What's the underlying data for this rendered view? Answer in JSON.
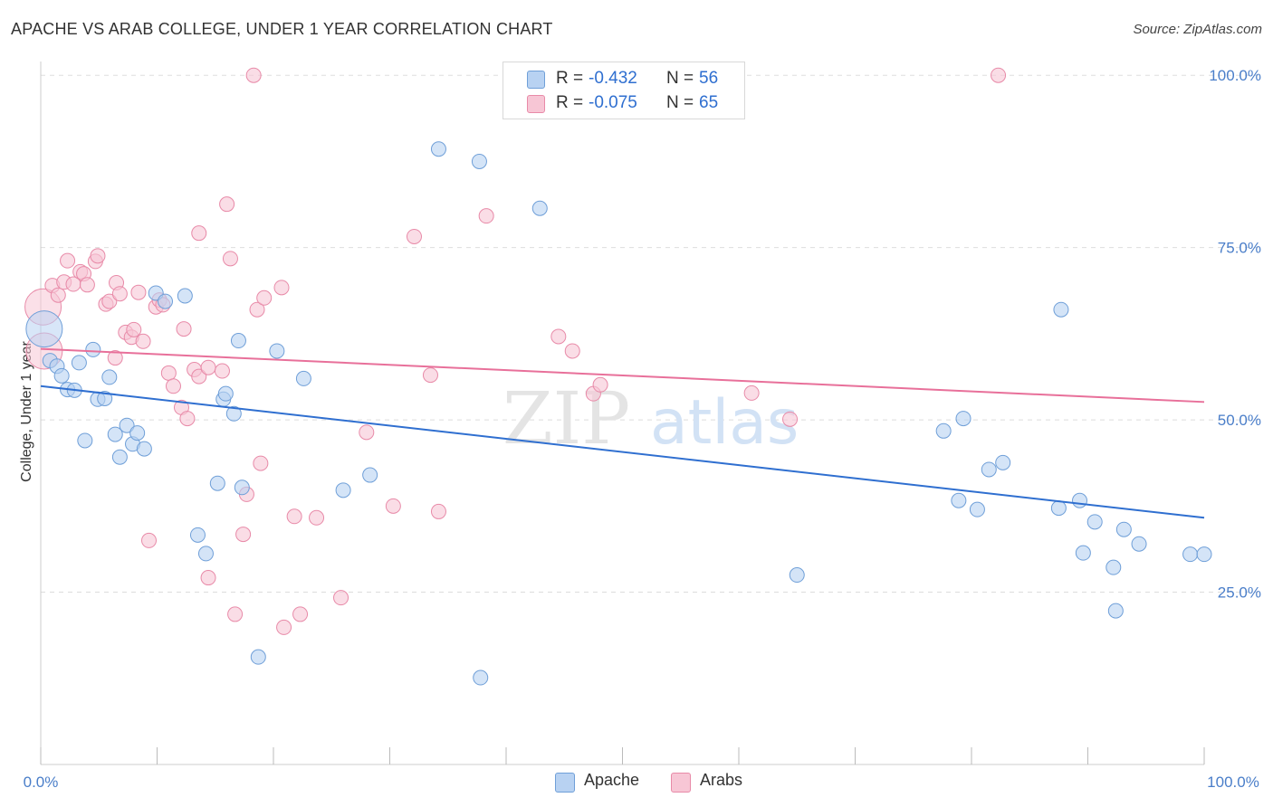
{
  "title": "APACHE VS ARAB COLLEGE, UNDER 1 YEAR CORRELATION CHART",
  "source": "Source: ZipAtlas.com",
  "watermark": {
    "zip": "ZIP",
    "atlas": "atlas"
  },
  "legend": {
    "apache": {
      "r_label": "R =",
      "r_value": "-0.432",
      "n_label": "N =",
      "n_value": "56"
    },
    "arabs": {
      "r_label": "R =",
      "r_value": "-0.075",
      "n_label": "N =",
      "n_value": "65"
    }
  },
  "bottom_legend": {
    "apache": "Apache",
    "arabs": "Arabs"
  },
  "colors": {
    "apache_fill": "#b8d2f2",
    "apache_stroke": "#6f9fd8",
    "apache_line": "#2f6fd0",
    "arabs_fill": "#f7c6d5",
    "arabs_stroke": "#e88aa8",
    "arabs_line": "#e8709a",
    "grid": "#dddddd",
    "tick_text": "#4a7ec9"
  },
  "chart_data": {
    "type": "scatter",
    "title": "APACHE VS ARAB COLLEGE, UNDER 1 YEAR CORRELATION CHART",
    "xlabel": "",
    "ylabel": "College, Under 1 year",
    "xlim": [
      0,
      100
    ],
    "ylim": [
      0,
      102
    ],
    "x_tick_labels": [
      "0.0%",
      "100.0%"
    ],
    "y_ticks": [
      25,
      50,
      75,
      100
    ],
    "y_tick_labels": [
      "25.0%",
      "50.0%",
      "75.0%",
      "100.0%"
    ],
    "series": [
      {
        "name": "Apache",
        "trend": {
          "x": [
            0,
            100
          ],
          "y": [
            54.9,
            35.8
          ]
        },
        "points": [
          {
            "x": 0.3,
            "y": 63.2,
            "big": true
          },
          {
            "x": 0.8,
            "y": 58.6
          },
          {
            "x": 1.4,
            "y": 57.8
          },
          {
            "x": 1.8,
            "y": 56.4
          },
          {
            "x": 2.3,
            "y": 54.4
          },
          {
            "x": 2.9,
            "y": 54.3
          },
          {
            "x": 3.3,
            "y": 58.3
          },
          {
            "x": 3.8,
            "y": 47.0
          },
          {
            "x": 4.5,
            "y": 60.2
          },
          {
            "x": 4.9,
            "y": 53.0
          },
          {
            "x": 5.5,
            "y": 53.1
          },
          {
            "x": 5.9,
            "y": 56.2
          },
          {
            "x": 6.4,
            "y": 47.9
          },
          {
            "x": 6.8,
            "y": 44.6
          },
          {
            "x": 7.4,
            "y": 49.2
          },
          {
            "x": 7.9,
            "y": 46.5
          },
          {
            "x": 8.3,
            "y": 48.1
          },
          {
            "x": 8.9,
            "y": 45.8
          },
          {
            "x": 9.9,
            "y": 68.4
          },
          {
            "x": 10.7,
            "y": 67.2
          },
          {
            "x": 12.4,
            "y": 68.0
          },
          {
            "x": 13.5,
            "y": 33.3
          },
          {
            "x": 14.2,
            "y": 30.6
          },
          {
            "x": 15.2,
            "y": 40.8
          },
          {
            "x": 15.7,
            "y": 53.0
          },
          {
            "x": 15.9,
            "y": 53.8
          },
          {
            "x": 16.6,
            "y": 50.9
          },
          {
            "x": 17.0,
            "y": 61.5
          },
          {
            "x": 17.3,
            "y": 40.2
          },
          {
            "x": 18.7,
            "y": 15.6
          },
          {
            "x": 20.3,
            "y": 60.0
          },
          {
            "x": 22.6,
            "y": 56.0
          },
          {
            "x": 26.0,
            "y": 39.8
          },
          {
            "x": 28.3,
            "y": 42.0
          },
          {
            "x": 34.2,
            "y": 89.3
          },
          {
            "x": 37.7,
            "y": 87.5
          },
          {
            "x": 37.8,
            "y": 12.6
          },
          {
            "x": 42.9,
            "y": 80.7
          },
          {
            "x": 65.0,
            "y": 27.5
          },
          {
            "x": 77.6,
            "y": 48.4
          },
          {
            "x": 78.9,
            "y": 38.3
          },
          {
            "x": 79.3,
            "y": 50.2
          },
          {
            "x": 80.5,
            "y": 37.0
          },
          {
            "x": 81.5,
            "y": 42.8
          },
          {
            "x": 82.7,
            "y": 43.8
          },
          {
            "x": 87.5,
            "y": 37.2
          },
          {
            "x": 87.7,
            "y": 66.0
          },
          {
            "x": 89.3,
            "y": 38.3
          },
          {
            "x": 89.6,
            "y": 30.7
          },
          {
            "x": 90.6,
            "y": 35.2
          },
          {
            "x": 92.2,
            "y": 28.6
          },
          {
            "x": 92.4,
            "y": 22.3
          },
          {
            "x": 93.1,
            "y": 34.1
          },
          {
            "x": 94.4,
            "y": 32.0
          },
          {
            "x": 98.8,
            "y": 30.5
          },
          {
            "x": 100.0,
            "y": 30.5
          }
        ]
      },
      {
        "name": "Arabs",
        "trend": {
          "x": [
            0,
            100
          ],
          "y": [
            60.3,
            52.6
          ]
        },
        "points": [
          {
            "x": 0.2,
            "y": 66.4,
            "big": true
          },
          {
            "x": 0.3,
            "y": 60.0,
            "big": true
          },
          {
            "x": 1.0,
            "y": 69.5
          },
          {
            "x": 1.5,
            "y": 68.1
          },
          {
            "x": 2.0,
            "y": 70.0
          },
          {
            "x": 2.3,
            "y": 73.1
          },
          {
            "x": 2.8,
            "y": 69.7
          },
          {
            "x": 3.4,
            "y": 71.5
          },
          {
            "x": 3.7,
            "y": 71.2
          },
          {
            "x": 4.0,
            "y": 69.6
          },
          {
            "x": 4.7,
            "y": 73.0
          },
          {
            "x": 4.9,
            "y": 73.8
          },
          {
            "x": 5.6,
            "y": 66.8
          },
          {
            "x": 5.9,
            "y": 67.2
          },
          {
            "x": 6.4,
            "y": 59.0
          },
          {
            "x": 6.5,
            "y": 69.9
          },
          {
            "x": 6.8,
            "y": 68.3
          },
          {
            "x": 7.3,
            "y": 62.7
          },
          {
            "x": 7.8,
            "y": 62.0
          },
          {
            "x": 8.0,
            "y": 63.1
          },
          {
            "x": 8.4,
            "y": 68.5
          },
          {
            "x": 8.8,
            "y": 61.4
          },
          {
            "x": 9.3,
            "y": 32.5
          },
          {
            "x": 9.9,
            "y": 66.4
          },
          {
            "x": 10.2,
            "y": 67.4
          },
          {
            "x": 10.5,
            "y": 66.7
          },
          {
            "x": 11.0,
            "y": 56.8
          },
          {
            "x": 11.4,
            "y": 54.9
          },
          {
            "x": 12.1,
            "y": 51.8
          },
          {
            "x": 12.3,
            "y": 63.2
          },
          {
            "x": 12.6,
            "y": 50.2
          },
          {
            "x": 13.2,
            "y": 57.3
          },
          {
            "x": 13.6,
            "y": 56.3
          },
          {
            "x": 13.6,
            "y": 77.1
          },
          {
            "x": 14.4,
            "y": 27.1
          },
          {
            "x": 14.4,
            "y": 57.6
          },
          {
            "x": 15.6,
            "y": 57.1
          },
          {
            "x": 16.0,
            "y": 81.3
          },
          {
            "x": 16.3,
            "y": 73.4
          },
          {
            "x": 16.7,
            "y": 21.8
          },
          {
            "x": 17.4,
            "y": 33.4
          },
          {
            "x": 17.7,
            "y": 39.2
          },
          {
            "x": 18.3,
            "y": 100.0
          },
          {
            "x": 18.6,
            "y": 66.0
          },
          {
            "x": 18.9,
            "y": 43.7
          },
          {
            "x": 19.2,
            "y": 67.7
          },
          {
            "x": 20.7,
            "y": 69.2
          },
          {
            "x": 20.9,
            "y": 19.9
          },
          {
            "x": 21.8,
            "y": 36.0
          },
          {
            "x": 22.3,
            "y": 21.8
          },
          {
            "x": 23.7,
            "y": 35.8
          },
          {
            "x": 25.8,
            "y": 24.2
          },
          {
            "x": 28.0,
            "y": 48.2
          },
          {
            "x": 30.3,
            "y": 37.5
          },
          {
            "x": 32.1,
            "y": 76.6
          },
          {
            "x": 33.5,
            "y": 56.5
          },
          {
            "x": 34.2,
            "y": 36.7
          },
          {
            "x": 38.3,
            "y": 79.6
          },
          {
            "x": 44.5,
            "y": 62.1
          },
          {
            "x": 45.7,
            "y": 60.0
          },
          {
            "x": 47.5,
            "y": 53.8
          },
          {
            "x": 48.1,
            "y": 55.1
          },
          {
            "x": 61.1,
            "y": 53.9
          },
          {
            "x": 64.4,
            "y": 50.1
          },
          {
            "x": 82.3,
            "y": 100.0
          }
        ]
      }
    ]
  }
}
